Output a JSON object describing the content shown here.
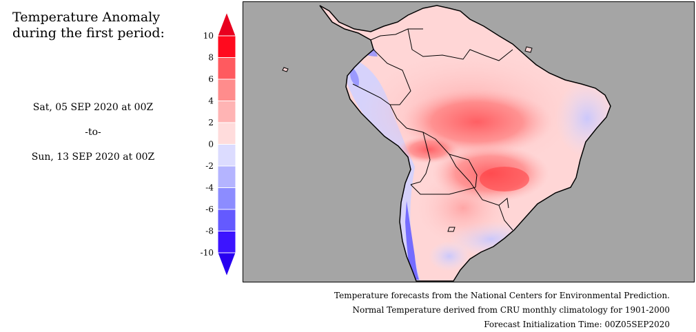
{
  "title": {
    "line1": "Temperature Anomaly",
    "line2": "during the first period:"
  },
  "period": {
    "start": "Sat, 05 SEP 2020 at 00Z",
    "separator": "-to-",
    "end": "Sun, 13 SEP 2020 at 00Z"
  },
  "colorbar": {
    "ticks": [
      "10",
      "8",
      "6",
      "4",
      "2",
      "0",
      "-2",
      "-4",
      "-6",
      "-8",
      "-10"
    ],
    "bins": [
      {
        "from": 10,
        "to": 12,
        "color": "#e8001e"
      },
      {
        "from": 8,
        "to": 10,
        "color": "#ff0a1e"
      },
      {
        "from": 6,
        "to": 8,
        "color": "#ff5a5f"
      },
      {
        "from": 4,
        "to": 6,
        "color": "#ff8c8c"
      },
      {
        "from": 2,
        "to": 4,
        "color": "#ffb4b4"
      },
      {
        "from": 0,
        "to": 2,
        "color": "#ffdcdc"
      },
      {
        "from": -2,
        "to": 0,
        "color": "#dcdcff"
      },
      {
        "from": -4,
        "to": -2,
        "color": "#b4b4ff"
      },
      {
        "from": -6,
        "to": -4,
        "color": "#8c8cff"
      },
      {
        "from": -8,
        "to": -6,
        "color": "#645aff"
      },
      {
        "from": -10,
        "to": -8,
        "color": "#3c14ff"
      },
      {
        "from": -12,
        "to": -10,
        "color": "#2800f0"
      }
    ]
  },
  "map": {
    "ocean_color": "#a5a5a5",
    "region": "South America"
  },
  "footer": {
    "line1": "Temperature forecasts from the National Centers for Environmental Prediction.",
    "line2": "Normal Temperature derived from CRU monthly climatology for 1901-2000",
    "line3": "Forecast Initialization Time: 00Z05SEP2020"
  }
}
